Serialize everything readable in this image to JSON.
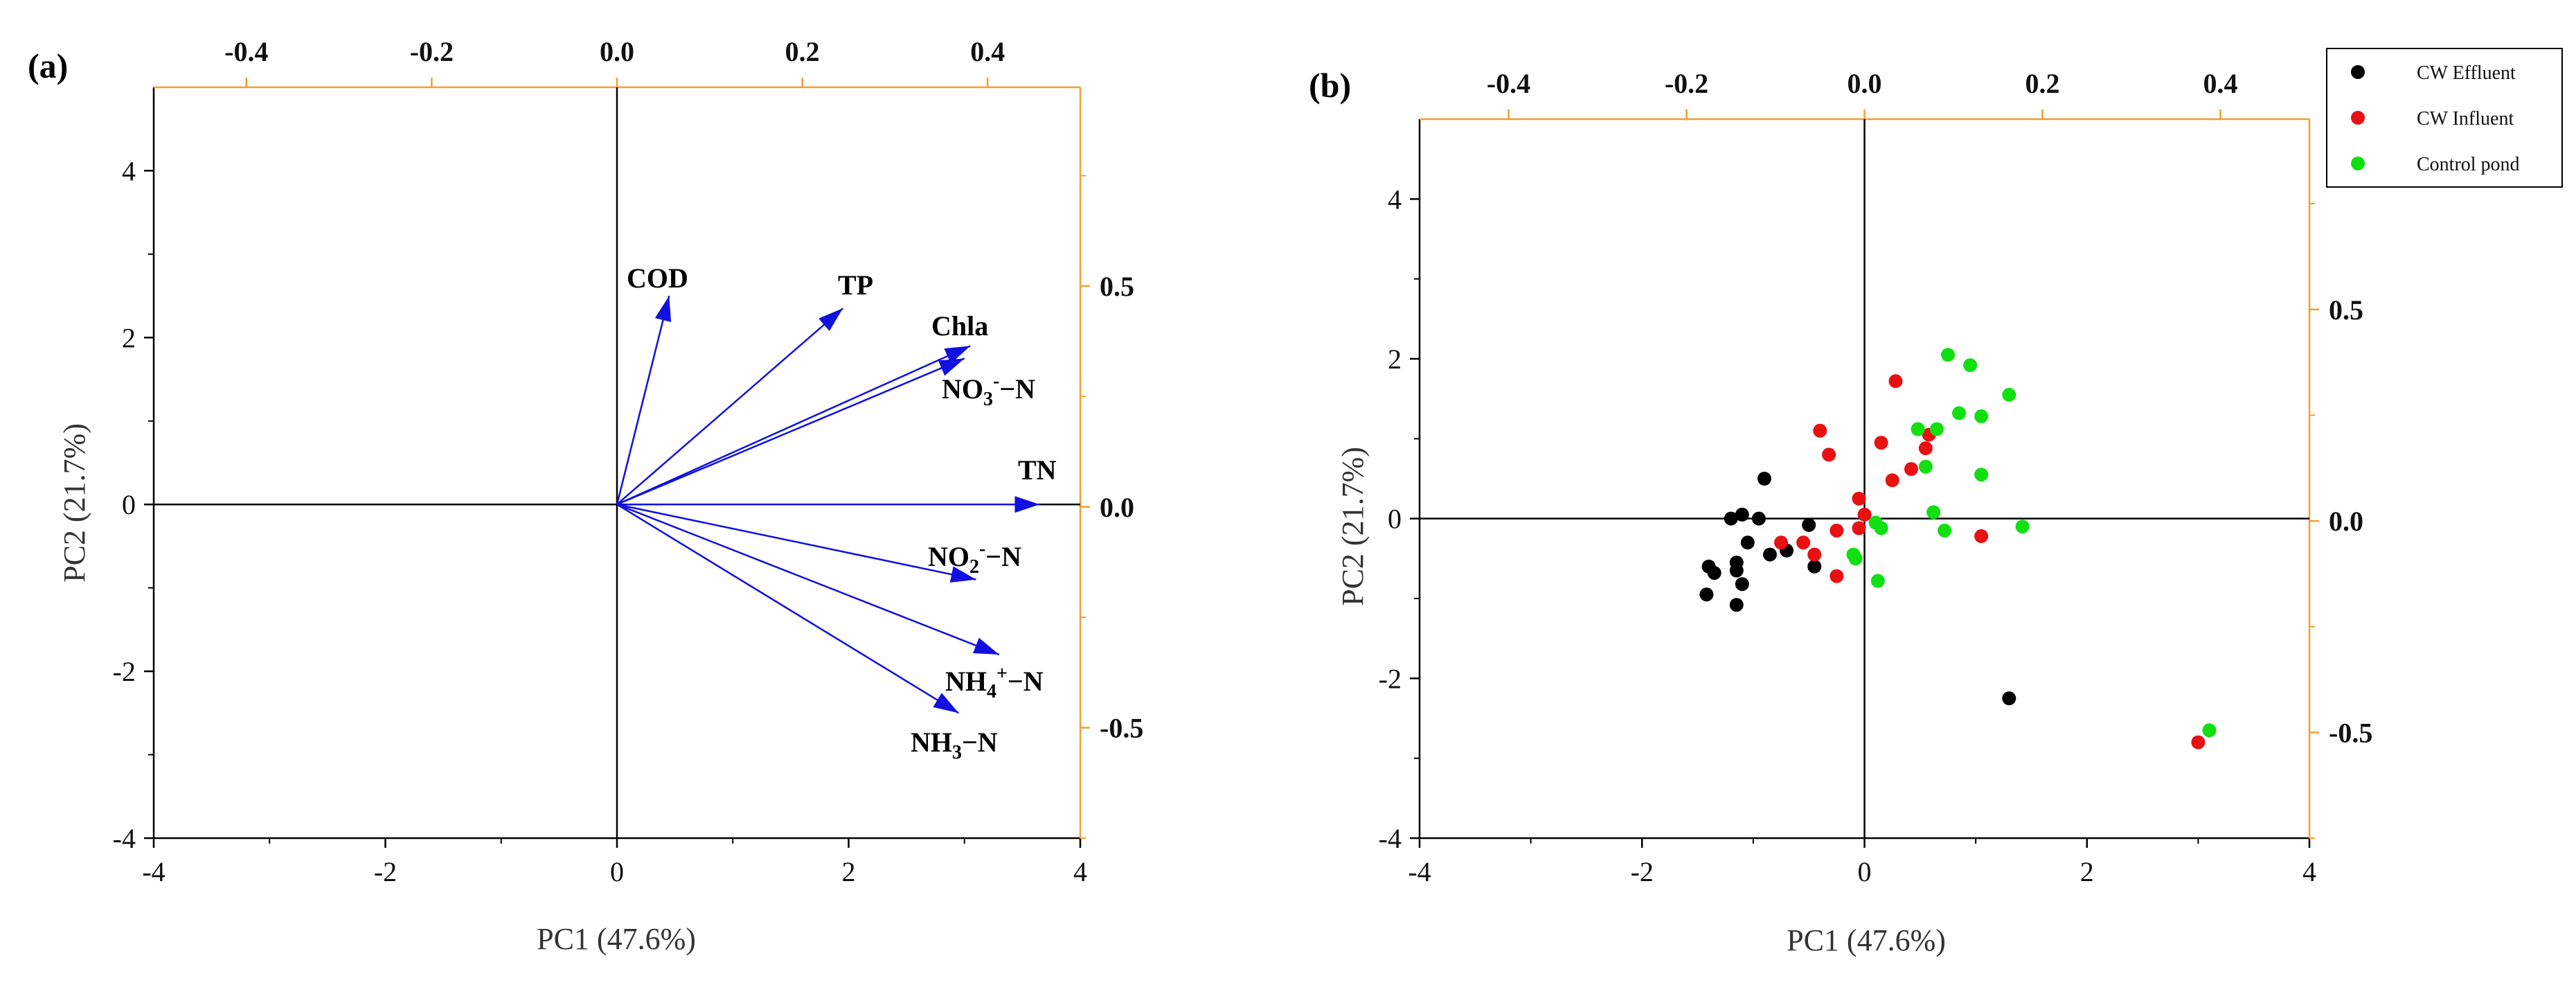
{
  "colors": {
    "axis": "#000000",
    "secondary_axis": "#F0A030",
    "vector": "#1010E0",
    "cw_effluent": "#000000",
    "cw_influent": "#E81010",
    "control_pond": "#10E010"
  },
  "chart_data": [
    {
      "panel_label": "(a)",
      "type": "scatter",
      "subtype": "biplot-loadings",
      "xlabel": "PC1 (47.6%)",
      "ylabel": "PC2 (21.7%)",
      "xlim": [
        -4,
        4
      ],
      "ylim": [
        -4,
        5
      ],
      "x_ticks": [
        "-4",
        "-2",
        "0",
        "2",
        "4"
      ],
      "y_ticks": [
        "-4",
        "-2",
        "0",
        "2",
        "4"
      ],
      "top_lim": [
        -0.5,
        0.5
      ],
      "top_ticks": [
        "-0.4",
        "-0.2",
        "0.0",
        "0.2",
        "0.4"
      ],
      "right_lim": [
        -0.75,
        0.95
      ],
      "right_ticks": [
        "-0.5",
        "0.0",
        "0.5"
      ],
      "vectors": [
        {
          "name": "COD",
          "x": 0.45,
          "y": 2.5
        },
        {
          "name": "TP",
          "x": 1.95,
          "y": 2.35
        },
        {
          "name": "Chla",
          "x": 3.05,
          "y": 1.9
        },
        {
          "name": "NO3- -N",
          "x": 3.0,
          "y": 1.75
        },
        {
          "name": "TN",
          "x": 3.65,
          "y": 0.0
        },
        {
          "name": "NO2- -N",
          "x": 3.1,
          "y": -0.9
        },
        {
          "name": "NH4+ -N",
          "x": 3.3,
          "y": -1.8
        },
        {
          "name": "NH3-N",
          "x": 2.95,
          "y": -2.5
        }
      ],
      "labels": {
        "COD": "COD",
        "TP": "TP",
        "Chla": "Chla",
        "NO3_base": "NO",
        "NO3_sub": "3",
        "NO3_sup": "-",
        "NO3_tail": "−N",
        "TN": "TN",
        "NO2_base": "NO",
        "NO2_sub": "2",
        "NO2_sup": "-",
        "NO2_tail": "−N",
        "NH4_base": "NH",
        "NH4_sub": "4",
        "NH4_sup": "+",
        "NH4_tail": "−N",
        "NH3_base": "NH",
        "NH3_sub": "3",
        "NH3_tail": "−N"
      }
    },
    {
      "panel_label": "(b)",
      "type": "scatter",
      "xlabel": "PC1 (47.6%)",
      "ylabel": "PC2 (21.7%)",
      "xlim": [
        -4,
        4
      ],
      "ylim": [
        -4,
        5
      ],
      "x_ticks": [
        "-4",
        "-2",
        "0",
        "2",
        "4"
      ],
      "y_ticks": [
        "-4",
        "-2",
        "0",
        "2",
        "4"
      ],
      "top_lim": [
        -0.5,
        0.5
      ],
      "top_ticks": [
        "-0.4",
        "-0.2",
        "0.0",
        "0.2",
        "0.4"
      ],
      "right_lim": [
        -0.75,
        0.95
      ],
      "right_ticks": [
        "-0.5",
        "0.0",
        "0.5"
      ],
      "legend_position": "top-right",
      "series": [
        {
          "name": "CW Effluent",
          "color": "#000000",
          "points": [
            [
              -1.4,
              -0.6
            ],
            [
              -1.35,
              -0.68
            ],
            [
              -1.42,
              -0.95
            ],
            [
              -1.2,
              0.0
            ],
            [
              -1.1,
              0.05
            ],
            [
              -0.95,
              0.0
            ],
            [
              -1.05,
              -0.3
            ],
            [
              -1.15,
              -0.55
            ],
            [
              -1.15,
              -0.65
            ],
            [
              -1.1,
              -0.82
            ],
            [
              -1.15,
              -1.08
            ],
            [
              -0.9,
              0.5
            ],
            [
              -0.85,
              -0.45
            ],
            [
              -0.7,
              -0.4
            ],
            [
              -0.5,
              -0.08
            ],
            [
              -0.45,
              -0.6
            ],
            [
              1.3,
              -2.25
            ]
          ]
        },
        {
          "name": "CW Influent",
          "color": "#E81010",
          "points": [
            [
              0.28,
              1.72
            ],
            [
              -0.4,
              1.1
            ],
            [
              -0.32,
              0.8
            ],
            [
              0.15,
              0.95
            ],
            [
              0.58,
              1.05
            ],
            [
              0.55,
              0.88
            ],
            [
              0.42,
              0.62
            ],
            [
              0.25,
              0.48
            ],
            [
              -0.05,
              0.25
            ],
            [
              0.0,
              0.05
            ],
            [
              -0.05,
              -0.12
            ],
            [
              -0.25,
              -0.15
            ],
            [
              -0.55,
              -0.3
            ],
            [
              -0.75,
              -0.3
            ],
            [
              -0.45,
              -0.45
            ],
            [
              -0.25,
              -0.72
            ],
            [
              1.05,
              -0.22
            ],
            [
              3.0,
              -2.8
            ]
          ]
        },
        {
          "name": "Control pond",
          "color": "#10E010",
          "points": [
            [
              0.75,
              2.05
            ],
            [
              0.95,
              1.92
            ],
            [
              1.3,
              1.55
            ],
            [
              0.85,
              1.32
            ],
            [
              1.05,
              1.28
            ],
            [
              0.48,
              1.12
            ],
            [
              0.65,
              1.12
            ],
            [
              0.55,
              0.65
            ],
            [
              1.05,
              0.55
            ],
            [
              0.62,
              0.08
            ],
            [
              0.1,
              -0.05
            ],
            [
              0.15,
              -0.12
            ],
            [
              0.72,
              -0.15
            ],
            [
              1.42,
              -0.1
            ],
            [
              -0.1,
              -0.45
            ],
            [
              -0.08,
              -0.5
            ],
            [
              0.12,
              -0.78
            ],
            [
              3.1,
              -2.65
            ]
          ]
        }
      ]
    }
  ]
}
